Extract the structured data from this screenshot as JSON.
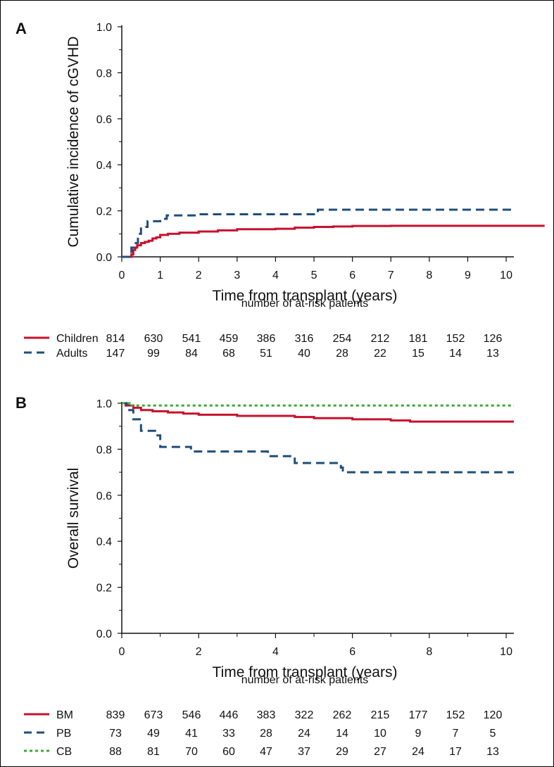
{
  "chart_data": [
    {
      "panel": "A",
      "type": "line",
      "step": true,
      "xlabel": "Time from transplant (years)",
      "ylabel": "Cumulative incidence of cGVHD",
      "xlim": [
        0,
        10.2
      ],
      "ylim": [
        0,
        1.0
      ],
      "x_ticks": [
        "0",
        "1",
        "2",
        "3",
        "4",
        "5",
        "6",
        "7",
        "8",
        "9",
        "10"
      ],
      "y_ticks": [
        "0.0",
        "0.2",
        "0.4",
        "0.6",
        "0.8",
        "1.0"
      ],
      "grid": false,
      "series": [
        {
          "name": "Children",
          "color": "#c8102e",
          "dash": "solid",
          "x": [
            0,
            0.2,
            0.25,
            0.3,
            0.35,
            0.4,
            0.5,
            0.6,
            0.7,
            0.8,
            0.9,
            1.0,
            1.2,
            1.5,
            2.0,
            2.5,
            3.0,
            3.5,
            4.0,
            4.5,
            5.0,
            5.5,
            6.0,
            7.0,
            8.0,
            9.0,
            10.0,
            11.0
          ],
          "y": [
            0,
            0,
            0.01,
            0.03,
            0.04,
            0.05,
            0.06,
            0.065,
            0.07,
            0.08,
            0.085,
            0.095,
            0.1,
            0.105,
            0.11,
            0.115,
            0.12,
            0.12,
            0.122,
            0.127,
            0.13,
            0.132,
            0.134,
            0.135,
            0.135,
            0.135,
            0.135,
            0.135
          ]
        },
        {
          "name": "Adults",
          "color": "#1f4e79",
          "dash": "dashed",
          "x": [
            0,
            0.25,
            0.33,
            0.42,
            0.5,
            0.67,
            1.0,
            1.17,
            2.0,
            5.0,
            5.1,
            10.2
          ],
          "y": [
            0,
            0.04,
            0.06,
            0.1,
            0.13,
            0.155,
            0.165,
            0.18,
            0.185,
            0.185,
            0.205,
            0.205
          ]
        }
      ],
      "risk_table": {
        "title": "number of at-risk patients",
        "rows": [
          {
            "name": "Children",
            "values": [
              "814",
              "630",
              "541",
              "459",
              "386",
              "316",
              "254",
              "212",
              "181",
              "152",
              "126"
            ]
          },
          {
            "name": "Adults",
            "values": [
              "147",
              "99",
              "84",
              "68",
              "51",
              "40",
              "28",
              "22",
              "15",
              "14",
              "13"
            ]
          }
        ]
      }
    },
    {
      "panel": "B",
      "type": "line",
      "step": true,
      "xlabel": "Time from transplant (years)",
      "ylabel": "Overall survival",
      "xlim": [
        0,
        10.2
      ],
      "ylim": [
        0,
        1.0
      ],
      "x_ticks": [
        "0",
        "2",
        "4",
        "6",
        "8",
        "10"
      ],
      "y_ticks": [
        "0.0",
        "0.2",
        "0.4",
        "0.6",
        "0.8",
        "1.0"
      ],
      "grid": false,
      "series": [
        {
          "name": "BM",
          "color": "#c8102e",
          "dash": "solid",
          "x": [
            0,
            0.1,
            0.3,
            0.5,
            0.8,
            1.2,
            1.6,
            2.0,
            3.0,
            4.0,
            4.5,
            5.0,
            6.0,
            7.0,
            7.5,
            8.0,
            9.0,
            10.2
          ],
          "y": [
            1.0,
            0.99,
            0.98,
            0.97,
            0.965,
            0.96,
            0.955,
            0.95,
            0.945,
            0.945,
            0.94,
            0.935,
            0.93,
            0.925,
            0.92,
            0.92,
            0.92,
            0.92
          ]
        },
        {
          "name": "PB",
          "color": "#1f4e79",
          "dash": "dashed",
          "x": [
            0,
            0.15,
            0.3,
            0.5,
            0.9,
            1.0,
            1.8,
            3.8,
            4.5,
            5.7,
            5.75,
            10.2
          ],
          "y": [
            1.0,
            0.97,
            0.93,
            0.88,
            0.86,
            0.81,
            0.79,
            0.77,
            0.74,
            0.72,
            0.7,
            0.7
          ]
        },
        {
          "name": "CB",
          "color": "#3aaa35",
          "dash": "dotted",
          "x": [
            0,
            0.1,
            0.2,
            10.2
          ],
          "y": [
            1.0,
            1.0,
            0.99,
            0.99
          ]
        }
      ],
      "risk_table": {
        "title": "number of at-risk patients",
        "rows": [
          {
            "name": "BM",
            "values": [
              "839",
              "673",
              "546",
              "446",
              "383",
              "322",
              "262",
              "215",
              "177",
              "152",
              "120"
            ]
          },
          {
            "name": "PB",
            "values": [
              "73",
              "49",
              "41",
              "33",
              "28",
              "24",
              "14",
              "10",
              "9",
              "7",
              "5"
            ]
          },
          {
            "name": "CB",
            "values": [
              "88",
              "81",
              "70",
              "60",
              "47",
              "37",
              "29",
              "27",
              "24",
              "17",
              "13"
            ]
          }
        ]
      }
    }
  ]
}
